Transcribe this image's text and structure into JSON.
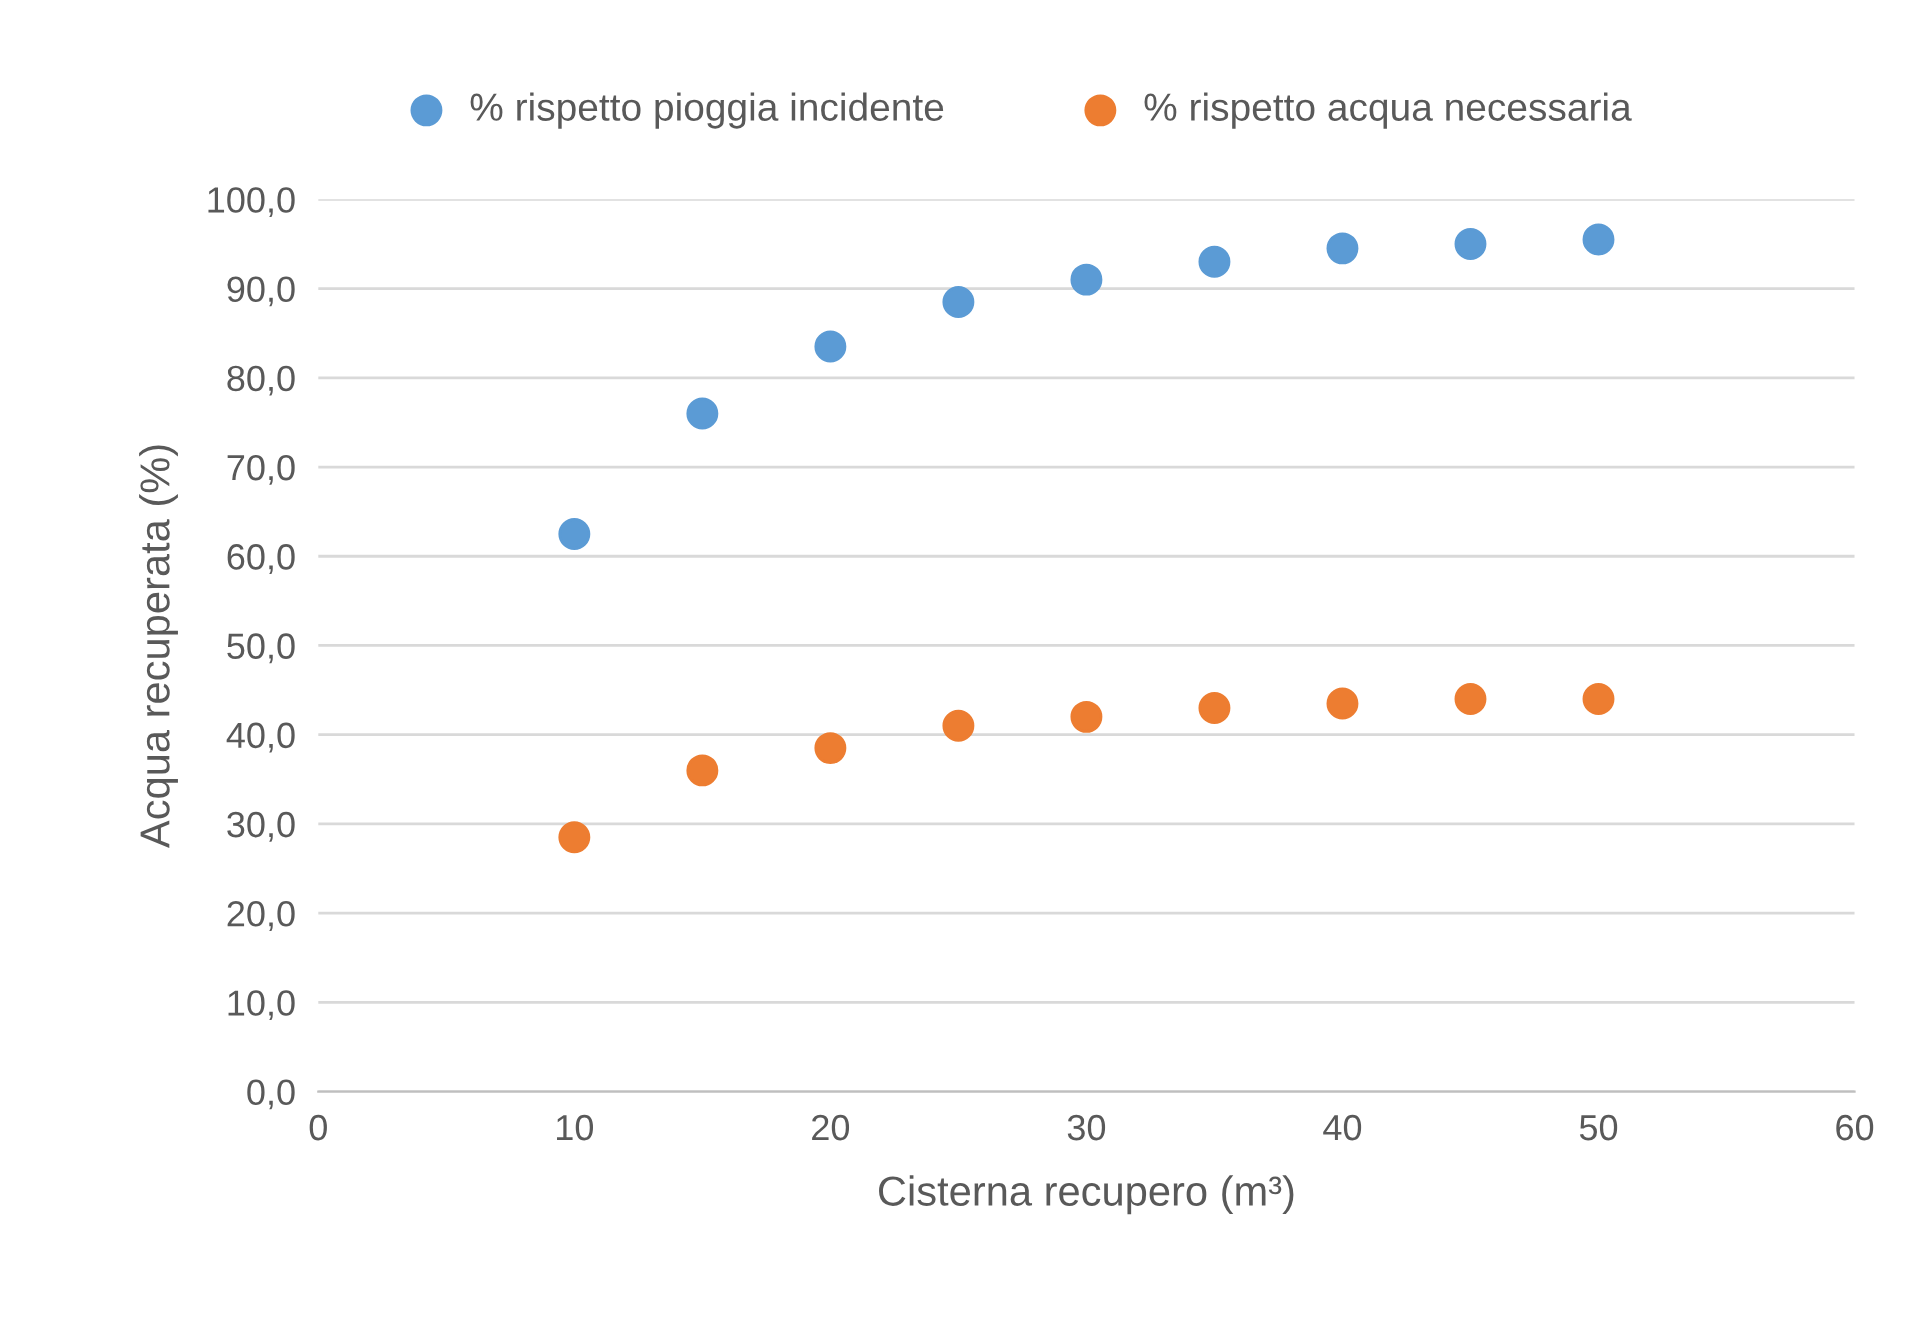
{
  "chart_data": {
    "type": "scatter",
    "xlabel": "Cisterna recupero (m³)",
    "ylabel": "Acqua recuperata (%)",
    "x": [
      10,
      15,
      20,
      25,
      30,
      35,
      40,
      45,
      50
    ],
    "series": [
      {
        "name": "% rispetto pioggia incidente",
        "color": "#5b9bd5",
        "values": [
          62.5,
          76.0,
          83.5,
          88.5,
          91.0,
          93.0,
          94.5,
          95.0,
          95.5
        ]
      },
      {
        "name": "% rispetto acqua necessaria",
        "color": "#ed7d31",
        "values": [
          28.5,
          36.0,
          38.5,
          41.0,
          42.0,
          43.0,
          43.5,
          44.0,
          44.0
        ]
      }
    ],
    "xlim": [
      0,
      60
    ],
    "xticks": [
      0,
      10,
      20,
      30,
      40,
      50,
      60
    ],
    "ylim": [
      0,
      100
    ],
    "yticks": [
      {
        "value": 0,
        "label": "0,0"
      },
      {
        "value": 10,
        "label": "10,0"
      },
      {
        "value": 20,
        "label": "20,0"
      },
      {
        "value": 30,
        "label": "30,0"
      },
      {
        "value": 40,
        "label": "40,0"
      },
      {
        "value": 50,
        "label": "50,0"
      },
      {
        "value": 60,
        "label": "60,0"
      },
      {
        "value": 70,
        "label": "70,0"
      },
      {
        "value": 80,
        "label": "80,0"
      },
      {
        "value": 90,
        "label": "90,0"
      },
      {
        "value": 100,
        "label": "100,0"
      }
    ],
    "grid": "y",
    "legend": "top",
    "marker": "circle"
  }
}
